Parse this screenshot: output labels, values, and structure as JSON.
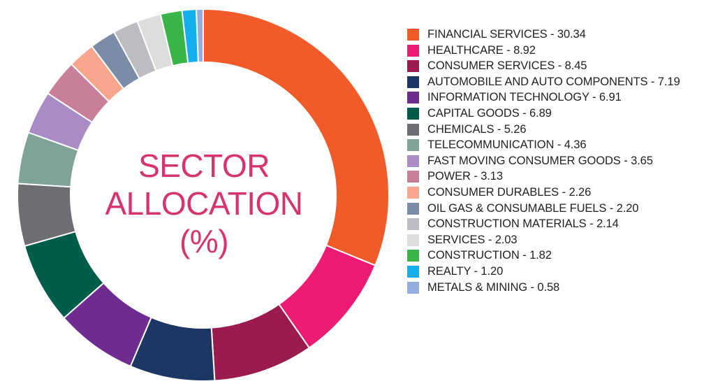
{
  "chart_data": {
    "type": "pie",
    "donut": true,
    "title": "SECTOR ALLOCATION (%)",
    "title_lines": [
      "SECTOR",
      "ALLOCATION",
      "(%)"
    ],
    "legend_position": "right",
    "categories": [
      "FINANCIAL SERVICES",
      "HEALTHCARE",
      "CONSUMER SERVICES",
      "AUTOMOBILE AND AUTO COMPONENTS",
      "INFORMATION TECHNOLOGY",
      "CAPITAL GOODS",
      "CHEMICALS",
      "TELECOMMUNICATION",
      "FAST MOVING CONSUMER GOODS",
      "POWER",
      "CONSUMER DURABLES",
      "OIL GAS & CONSUMABLE FUELS",
      "CONSTRUCTION MATERIALS",
      "SERVICES",
      "CONSTRUCTION",
      "REALTY",
      "METALS & MINING"
    ],
    "values": [
      30.34,
      8.92,
      8.45,
      7.19,
      6.91,
      6.89,
      5.26,
      4.36,
      3.65,
      3.13,
      2.26,
      2.2,
      2.14,
      2.03,
      1.82,
      1.2,
      0.58
    ],
    "legend_labels": [
      "FINANCIAL SERVICES - 30.34",
      "HEALTHCARE - 8.92",
      "CONSUMER SERVICES - 8.45",
      "AUTOMOBILE AND AUTO COMPONENTS - 7.19",
      "INFORMATION TECHNOLOGY - 6.91",
      "CAPITAL GOODS - 6.89",
      "CHEMICALS - 5.26",
      "TELECOMMUNICATION - 4.36",
      "FAST MOVING CONSUMER GOODS - 3.65",
      "POWER - 3.13",
      "CONSUMER DURABLES - 2.26",
      "OIL GAS & CONSUMABLE FUELS - 2.20",
      "CONSTRUCTION MATERIALS - 2.14",
      "SERVICES - 2.03",
      "CONSTRUCTION - 1.82",
      "REALTY - 1.20",
      "METALS & MINING - 0.58"
    ],
    "colors": [
      "#f15a29",
      "#ec1c74",
      "#9b1b4f",
      "#1c3764",
      "#6e2c91",
      "#005c4b",
      "#6d6e71",
      "#7fa398",
      "#a98bc5",
      "#c97f99",
      "#f8a78e",
      "#7d8ca6",
      "#bcbdc0",
      "#dcdddf",
      "#39b54a",
      "#14aeef",
      "#93aedd"
    ],
    "title_color": "#d6336f"
  }
}
